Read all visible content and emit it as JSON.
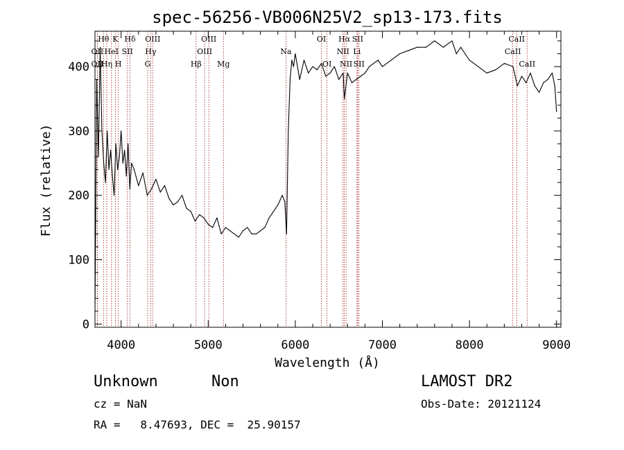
{
  "chart_data": {
    "type": "line",
    "title": "spec-56256-VB006N25V2_sp13-173.fits",
    "xlabel": "Wavelength (Å)",
    "ylabel": "Flux (relative)",
    "xlim": [
      3700,
      9050
    ],
    "ylim": [
      -5,
      455
    ],
    "xticks": [
      4000,
      5000,
      6000,
      7000,
      8000,
      9000
    ],
    "yticks": [
      0,
      100,
      200,
      300,
      400
    ],
    "grid": false,
    "series": [
      {
        "x": [
          3700,
          3720,
          3740,
          3760,
          3780,
          3800,
          3820,
          3840,
          3860,
          3880,
          3900,
          3920,
          3940,
          3960,
          3980,
          4000,
          4020,
          4040,
          4060,
          4080,
          4100,
          4120,
          4150,
          4200,
          4250,
          4300,
          4350,
          4400,
          4450,
          4500,
          4550,
          4600,
          4650,
          4700,
          4750,
          4800,
          4850,
          4900,
          4950,
          5000,
          5050,
          5100,
          5150,
          5200,
          5250,
          5300,
          5350,
          5400,
          5450,
          5500,
          5550,
          5600,
          5650,
          5700,
          5750,
          5800,
          5850,
          5880,
          5900,
          5920,
          5940,
          5960,
          5980,
          6000,
          6050,
          6100,
          6150,
          6200,
          6250,
          6300,
          6350,
          6400,
          6450,
          6500,
          6550,
          6563,
          6600,
          6650,
          6700,
          6750,
          6800,
          6850,
          6900,
          6950,
          7000,
          7100,
          7200,
          7300,
          7400,
          7500,
          7600,
          7700,
          7800,
          7850,
          7900,
          7950,
          8000,
          8100,
          8200,
          8300,
          8400,
          8500,
          8550,
          8600,
          8650,
          8700,
          8750,
          8800,
          8850,
          8900,
          8950,
          8980,
          9000
        ],
        "y": [
          20,
          380,
          260,
          430,
          300,
          250,
          220,
          300,
          240,
          270,
          230,
          200,
          280,
          240,
          260,
          300,
          250,
          270,
          230,
          280,
          210,
          250,
          240,
          215,
          235,
          200,
          210,
          225,
          205,
          215,
          195,
          185,
          190,
          200,
          180,
          175,
          160,
          170,
          165,
          155,
          150,
          165,
          140,
          150,
          145,
          140,
          135,
          145,
          150,
          140,
          140,
          145,
          150,
          165,
          175,
          185,
          200,
          190,
          140,
          300,
          380,
          410,
          400,
          420,
          380,
          410,
          390,
          400,
          395,
          405,
          385,
          390,
          400,
          380,
          390,
          350,
          390,
          375,
          380,
          385,
          390,
          400,
          405,
          410,
          400,
          410,
          420,
          425,
          430,
          430,
          440,
          430,
          440,
          420,
          430,
          420,
          410,
          400,
          390,
          395,
          405,
          400,
          370,
          385,
          375,
          390,
          370,
          360,
          375,
          380,
          390,
          370,
          330
        ]
      }
    ],
    "spectral_lines": [
      {
        "label": "Hθ",
        "wave": 3798,
        "row": 0
      },
      {
        "label": "K",
        "wave": 3934,
        "row": 0
      },
      {
        "label": "Hδ",
        "wave": 4102,
        "row": 0
      },
      {
        "label": "OIII",
        "wave": 4363,
        "row": 0
      },
      {
        "label": "OIII",
        "wave": 5007,
        "row": 0
      },
      {
        "label": "OI",
        "wave": 6300,
        "row": 0
      },
      {
        "label": "Hα",
        "wave": 6563,
        "row": 0
      },
      {
        "label": "SII",
        "wave": 6716,
        "row": 0
      },
      {
        "label": "CaII",
        "wave": 8542,
        "row": 0
      },
      {
        "label": "OII",
        "wave": 3727,
        "row": 1
      },
      {
        "label": "HeI",
        "wave": 3889,
        "row": 1
      },
      {
        "label": "SII",
        "wave": 4072,
        "row": 1
      },
      {
        "label": "Hγ",
        "wave": 4340,
        "row": 1
      },
      {
        "label": "OIII",
        "wave": 4959,
        "row": 1
      },
      {
        "label": "NII",
        "wave": 6548,
        "row": 1
      },
      {
        "label": "Li",
        "wave": 6708,
        "row": 1
      },
      {
        "label": "CaII",
        "wave": 8498,
        "row": 1
      },
      {
        "label": "OII",
        "wave": 3727,
        "row": 2
      },
      {
        "label": "Hη",
        "wave": 3835,
        "row": 2
      },
      {
        "label": "H",
        "wave": 3968,
        "row": 2
      },
      {
        "label": "G",
        "wave": 4305,
        "row": 2
      },
      {
        "label": "Hβ",
        "wave": 4861,
        "row": 2
      },
      {
        "label": "Mg",
        "wave": 5175,
        "row": 2
      },
      {
        "label": "Na",
        "wave": 5893,
        "row": 1
      },
      {
        "label": "OI",
        "wave": 6364,
        "row": 2
      },
      {
        "label": "NII",
        "wave": 6583,
        "row": 2
      },
      {
        "label": "SII",
        "wave": 6731,
        "row": 2
      },
      {
        "label": "CaII",
        "wave": 8662,
        "row": 2
      }
    ]
  },
  "info": {
    "object_class": "Unknown",
    "subclass": "Non",
    "survey": "LAMOST DR2",
    "cz": "cz = NaN",
    "obs_date": "Obs-Date: 20121124",
    "coords": "RA =   8.47693, DEC =  25.90157"
  }
}
